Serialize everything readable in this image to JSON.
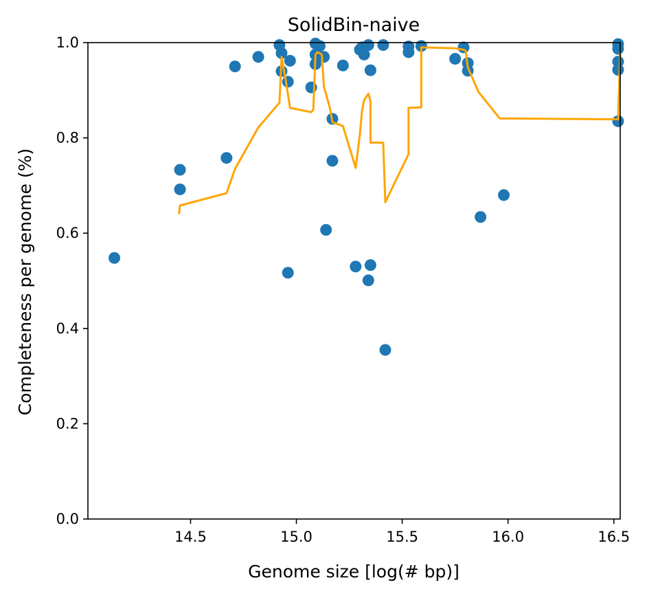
{
  "chart_data": {
    "type": "scatter",
    "title": "SolidBin-naive",
    "xlabel": "Genome size [log(# bp)]",
    "ylabel": "Completeness per genome (%)",
    "xlim": [
      14.015,
      16.53
    ],
    "ylim": [
      0.0,
      1.0
    ],
    "x_ticks": [
      14.5,
      15.0,
      15.5,
      16.0,
      16.5
    ],
    "x_tick_labels": [
      "14.5",
      "15.0",
      "15.5",
      "16.0",
      "16.5"
    ],
    "y_ticks": [
      0.0,
      0.2,
      0.4,
      0.6,
      0.8,
      1.0
    ],
    "y_tick_labels": [
      "0.0",
      "0.2",
      "0.4",
      "0.6",
      "0.8",
      "1.0"
    ],
    "grid": false,
    "legend": "none",
    "colors": {
      "points": "#1f77b4",
      "line": "#ffa500"
    },
    "series": [
      {
        "type": "scatter",
        "points": [
          [
            14.14,
            0.548
          ],
          [
            14.45,
            0.733
          ],
          [
            14.45,
            0.692
          ],
          [
            14.67,
            0.758
          ],
          [
            14.71,
            0.95
          ],
          [
            14.82,
            0.97
          ],
          [
            14.92,
            0.995
          ],
          [
            14.93,
            0.978
          ],
          [
            14.93,
            0.94
          ],
          [
            14.96,
            0.918
          ],
          [
            14.97,
            0.962
          ],
          [
            14.96,
            0.517
          ],
          [
            15.07,
            0.906
          ],
          [
            15.09,
            0.998
          ],
          [
            15.09,
            0.975
          ],
          [
            15.09,
            0.955
          ],
          [
            15.1,
            0.97
          ],
          [
            15.11,
            0.993
          ],
          [
            15.13,
            0.97
          ],
          [
            15.14,
            0.607
          ],
          [
            15.17,
            0.84
          ],
          [
            15.17,
            0.752
          ],
          [
            15.22,
            0.952
          ],
          [
            15.28,
            0.53
          ],
          [
            15.3,
            0.985
          ],
          [
            15.31,
            0.99
          ],
          [
            15.32,
            0.975
          ],
          [
            15.34,
            0.995
          ],
          [
            15.34,
            0.501
          ],
          [
            15.35,
            0.942
          ],
          [
            15.35,
            0.533
          ],
          [
            15.41,
            0.995
          ],
          [
            15.42,
            0.355
          ],
          [
            15.53,
            0.992
          ],
          [
            15.53,
            0.98
          ],
          [
            15.59,
            0.993
          ],
          [
            15.75,
            0.966
          ],
          [
            15.79,
            0.99
          ],
          [
            15.81,
            0.957
          ],
          [
            15.81,
            0.941
          ],
          [
            15.87,
            0.634
          ],
          [
            15.98,
            0.68
          ],
          [
            16.52,
            0.997
          ],
          [
            16.52,
            0.987
          ],
          [
            16.52,
            0.96
          ],
          [
            16.52,
            0.943
          ],
          [
            16.52,
            0.835
          ]
        ]
      },
      {
        "type": "line",
        "points": [
          [
            14.445,
            0.64
          ],
          [
            14.45,
            0.658
          ],
          [
            14.67,
            0.684
          ],
          [
            14.71,
            0.735
          ],
          [
            14.82,
            0.822
          ],
          [
            14.92,
            0.874
          ],
          [
            14.93,
            0.97
          ],
          [
            14.95,
            0.92
          ],
          [
            14.97,
            0.863
          ],
          [
            15.07,
            0.854
          ],
          [
            15.08,
            0.86
          ],
          [
            15.09,
            0.975
          ],
          [
            15.1,
            0.98
          ],
          [
            15.12,
            0.975
          ],
          [
            15.13,
            0.908
          ],
          [
            15.16,
            0.86
          ],
          [
            15.17,
            0.833
          ],
          [
            15.22,
            0.825
          ],
          [
            15.28,
            0.737
          ],
          [
            15.3,
            0.808
          ],
          [
            15.31,
            0.857
          ],
          [
            15.32,
            0.879
          ],
          [
            15.34,
            0.893
          ],
          [
            15.35,
            0.877
          ],
          [
            15.35,
            0.79
          ],
          [
            15.41,
            0.79
          ],
          [
            15.42,
            0.665
          ],
          [
            15.53,
            0.766
          ],
          [
            15.53,
            0.863
          ],
          [
            15.59,
            0.864
          ],
          [
            15.59,
            0.99
          ],
          [
            15.75,
            0.988
          ],
          [
            15.79,
            0.985
          ],
          [
            15.8,
            0.983
          ],
          [
            15.81,
            0.948
          ],
          [
            15.86,
            0.897
          ],
          [
            15.96,
            0.841
          ],
          [
            16.52,
            0.839
          ],
          [
            16.53,
            0.98
          ]
        ]
      }
    ]
  }
}
